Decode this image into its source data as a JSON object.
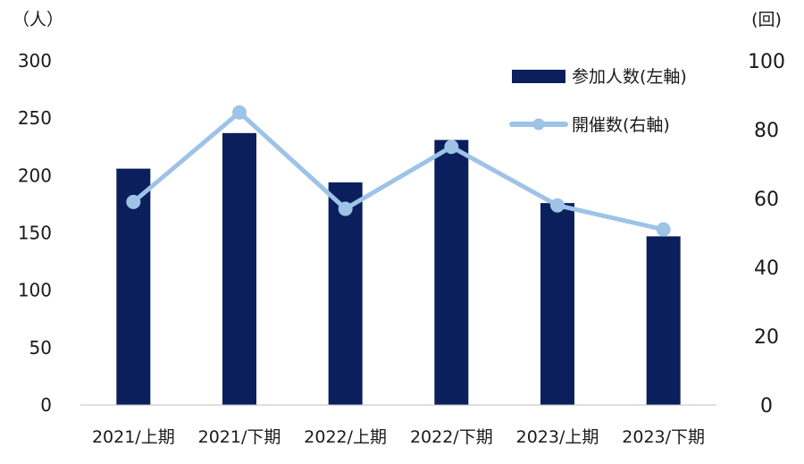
{
  "chart_data": {
    "type": "bar+line",
    "title": "",
    "categories": [
      "2021/上期",
      "2021/下期",
      "2022/上期",
      "2022/下期",
      "2023/上期",
      "2023/下期"
    ],
    "series": [
      {
        "name": "参加人数(左軸)",
        "type": "bar",
        "axis": "left",
        "color": "#0a1f5c",
        "values": [
          206,
          237,
          194,
          231,
          176,
          147
        ]
      },
      {
        "name": "開催数(右軸)",
        "type": "line",
        "axis": "right",
        "color": "#9dc3e6",
        "values": [
          59,
          85,
          57,
          75,
          58,
          51
        ]
      }
    ],
    "y_left": {
      "unit": "（人）",
      "min": 0,
      "max": 300,
      "ticks": [
        "300",
        "250",
        "200",
        "150",
        "100",
        "50",
        "0"
      ]
    },
    "y_right": {
      "unit": "(回)",
      "min": 0,
      "max": 100,
      "ticks": [
        "100",
        "80",
        "60",
        "40",
        "20",
        "0"
      ]
    },
    "grid": false,
    "legend_position": "top-right"
  }
}
